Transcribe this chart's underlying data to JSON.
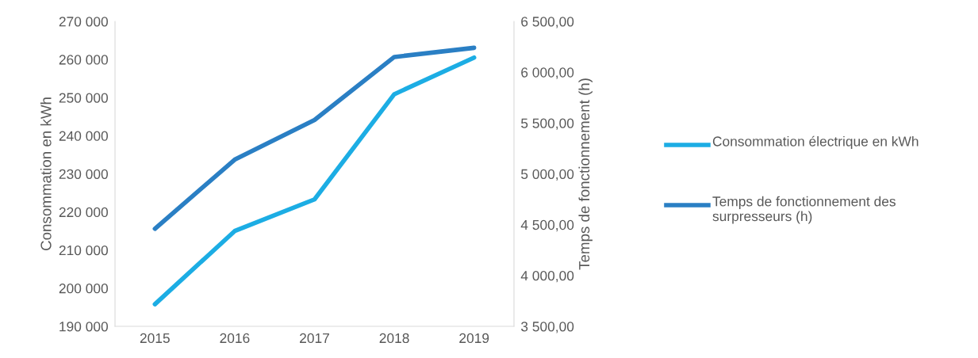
{
  "chart_data": {
    "type": "line",
    "categories": [
      "2015",
      "2016",
      "2017",
      "2018",
      "2019"
    ],
    "ylabel": "Consommation en kWh",
    "y2label": "Temps de fonctionnement (h)",
    "ylim": [
      190000,
      270000
    ],
    "yticks": [
      {
        "value": 190000,
        "label": "190 000"
      },
      {
        "value": 200000,
        "label": "200 000"
      },
      {
        "value": 210000,
        "label": "210 000"
      },
      {
        "value": 220000,
        "label": "220 000"
      },
      {
        "value": 230000,
        "label": "230 000"
      },
      {
        "value": 240000,
        "label": "240 000"
      },
      {
        "value": 250000,
        "label": "250 000"
      },
      {
        "value": 260000,
        "label": "260 000"
      },
      {
        "value": 270000,
        "label": "270 000"
      }
    ],
    "y2lim": [
      3500,
      6500
    ],
    "y2ticks": [
      {
        "value": 3500,
        "label": "3 500,00"
      },
      {
        "value": 4000,
        "label": "4 000,00"
      },
      {
        "value": 4500,
        "label": "4 500,00"
      },
      {
        "value": 5000,
        "label": "5 000,00"
      },
      {
        "value": 5500,
        "label": "5 500,00"
      },
      {
        "value": 6000,
        "label": "6 000,00"
      },
      {
        "value": 6500,
        "label": "6 500,00"
      }
    ],
    "series": [
      {
        "name": "Consommation électrique en kWh",
        "color": "#1cade4",
        "values": [
          195800,
          215000,
          223300,
          250900,
          260500
        ]
      },
      {
        "name": "Temps de fonctionnement des surpresseurs (h)",
        "color": "#2a7fc4",
        "axis": "y2",
        "values": [
          4460,
          5140,
          5530,
          6150,
          6240
        ]
      }
    ],
    "grid": false,
    "legend": "right",
    "marker": "none",
    "line_style": "solid"
  }
}
